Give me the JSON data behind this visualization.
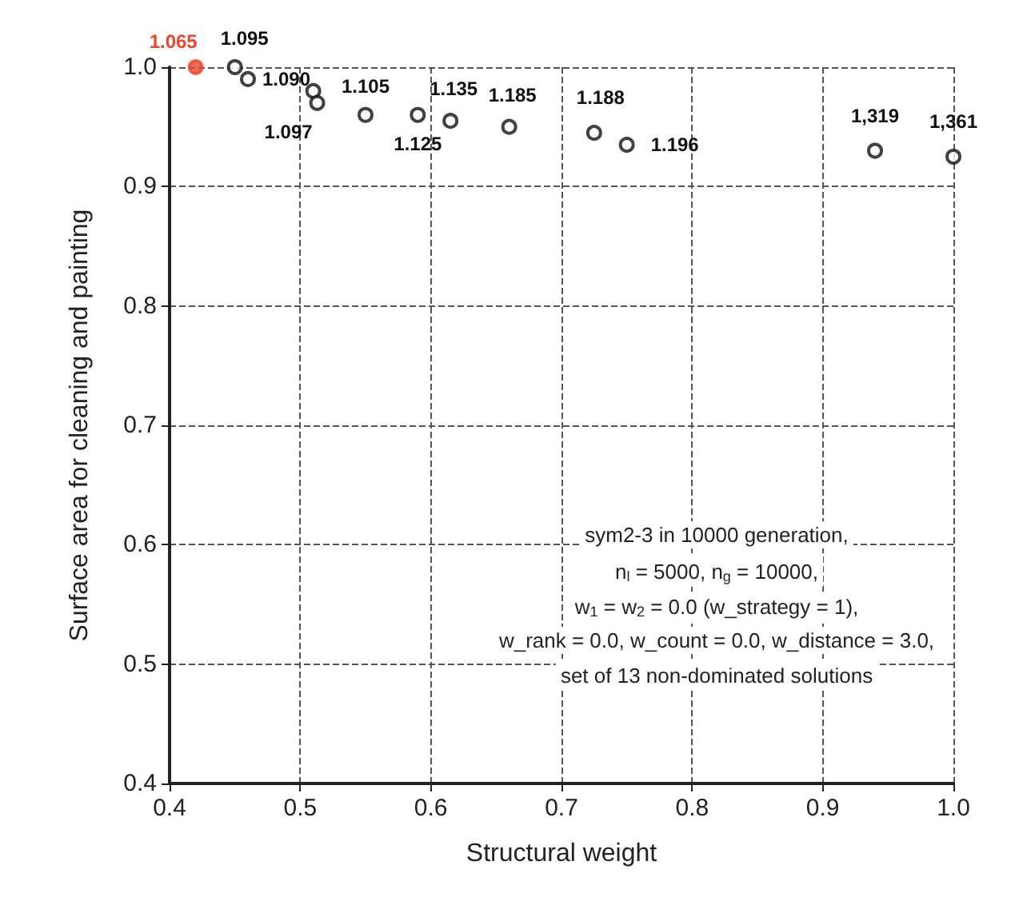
{
  "chart_data": {
    "type": "scatter",
    "xlabel": "Structural weight",
    "ylabel": "Surface area for cleaning and painting",
    "x": [
      0.42,
      0.45,
      0.46,
      0.51,
      0.513,
      0.55,
      0.59,
      0.615,
      0.66,
      0.725,
      0.75,
      0.94,
      1.0
    ],
    "values": [
      1.0,
      1.0,
      0.99,
      0.98,
      0.97,
      0.96,
      0.96,
      0.955,
      0.95,
      0.945,
      0.935,
      0.93,
      0.925
    ],
    "colors": [
      "#e8482e",
      "#111111",
      "#111111",
      "#111111",
      "#111111",
      "#111111",
      "#111111",
      "#111111",
      "#111111",
      "#111111",
      "#111111",
      "#111111",
      "#111111"
    ],
    "marker": "circle",
    "grid": true,
    "xlim": [
      0.4,
      1.0
    ],
    "xticks": [
      0.4,
      0.5,
      0.6,
      0.7,
      0.8,
      0.9,
      {
        "value": 1.0,
        "label": "1.0"
      }
    ],
    "ylim": [
      0.4,
      1.0
    ],
    "yticks": [
      0.4,
      0.5,
      0.6,
      0.7,
      0.8,
      0.9,
      {
        "value": 1.0,
        "label": "1.0"
      }
    ],
    "annotations": [
      {
        "text": "1.065",
        "x": 0.42,
        "y": 1.0
      },
      {
        "text": "1.095",
        "x": 0.45,
        "y": 1.0
      },
      {
        "text": "1.090",
        "x": 0.46,
        "y": 0.99
      },
      {
        "text": "1.097",
        "x": 0.513,
        "y": 0.97
      },
      {
        "text": "1.105",
        "x": 0.55,
        "y": 0.96
      },
      {
        "text": "1.125",
        "x": 0.59,
        "y": 0.96
      },
      {
        "text": "1.135",
        "x": 0.615,
        "y": 0.955
      },
      {
        "text": "1.185",
        "x": 0.66,
        "y": 0.95
      },
      {
        "text": "1.188",
        "x": 0.725,
        "y": 0.945
      },
      {
        "text": "1.196",
        "x": 0.75,
        "y": 0.935
      },
      {
        "text": "1,319",
        "x": 0.94,
        "y": 0.93
      },
      {
        "text": "1,361",
        "x": 1.0,
        "y": 0.925
      },
      "sym2-3 in 10000 generation,",
      "n$_{l}$ = 5000, n$_{g}$ = 10000,",
      "w$_{1}$ = w$_{2}$ = 0.0 (w_strategy = 1),",
      "w_rank = 0.0, w_count = 0.0, w_distance = 3.0,",
      "set of 13 non-dominated solutions"
    ]
  }
}
